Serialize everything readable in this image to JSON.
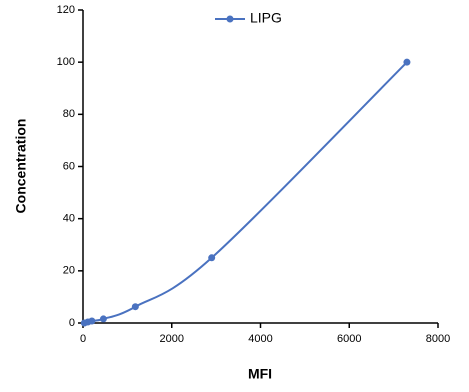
{
  "chart_data": {
    "type": "line",
    "x_label": "MFI",
    "y_label": "Concentration",
    "x": [
      30,
      110,
      200,
      460,
      1180,
      2900,
      7300
    ],
    "series": [
      {
        "name": "LIPG",
        "color": "#4a72c0",
        "values": [
          0,
          0.39,
          0.78,
          1.56,
          6.25,
          25,
          100
        ]
      }
    ],
    "xlim": [
      0,
      8000
    ],
    "xticks": [
      0,
      2000,
      4000,
      6000,
      8000
    ],
    "ylim": [
      0,
      120
    ],
    "yticks": [
      0,
      20,
      40,
      60,
      80,
      100,
      120
    ],
    "legend": "top"
  }
}
